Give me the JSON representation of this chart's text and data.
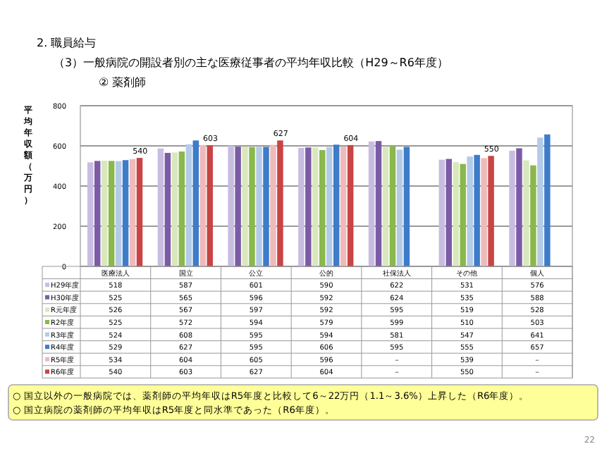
{
  "chart_data": {
    "type": "bar",
    "title": "2. 職員給与",
    "subtitle": "（3）一般病院の開設者別の主な医療従事者の平均年収比較（H29～R6年度）",
    "ylabel": "平均年収額（万円）",
    "categories": [
      "医療法人",
      "国立",
      "公立",
      "公的",
      "社保法人",
      "その他",
      "個人"
    ],
    "series": [
      {
        "name": "H29年度",
        "color": "#c8bde0",
        "values": [
          518,
          587,
          601,
          590,
          622,
          531,
          576
        ],
        "value_labels": [
          "518",
          "587",
          "601",
          "590",
          "622",
          "531",
          "576"
        ]
      },
      {
        "name": "H30年度",
        "color": "#7b5ba6",
        "values": [
          525,
          565,
          596,
          592,
          624,
          535,
          588
        ],
        "value_labels": [
          "525",
          "565",
          "596",
          "592",
          "624",
          "535",
          "588"
        ]
      },
      {
        "name": "R元年度",
        "color": "#d9e8bc",
        "values": [
          526,
          567,
          597,
          592,
          595,
          519,
          528
        ],
        "value_labels": [
          "526",
          "567",
          "597",
          "592",
          "595",
          "519",
          "528"
        ]
      },
      {
        "name": "R2年度",
        "color": "#8ab84c",
        "values": [
          525,
          572,
          594,
          579,
          599,
          510,
          503
        ],
        "value_labels": [
          "525",
          "572",
          "594",
          "579",
          "599",
          "510",
          "503"
        ]
      },
      {
        "name": "R3年度",
        "color": "#b4cbe8",
        "values": [
          524,
          608,
          595,
          594,
          581,
          547,
          641
        ],
        "value_labels": [
          "524",
          "608",
          "595",
          "594",
          "581",
          "547",
          "641"
        ]
      },
      {
        "name": "R4年度",
        "color": "#3d7cc9",
        "values": [
          529,
          627,
          595,
          606,
          595,
          555,
          657
        ],
        "value_labels": [
          "529",
          "627",
          "595",
          "606",
          "595",
          "555",
          "657"
        ]
      },
      {
        "name": "R5年度",
        "color": "#f0baba",
        "values": [
          534,
          604,
          605,
          596,
          null,
          539,
          null
        ],
        "value_labels": [
          "534",
          "604",
          "605",
          "596",
          "－",
          "539",
          "－"
        ]
      },
      {
        "name": "R6年度",
        "color": "#c94444",
        "values": [
          540,
          603,
          627,
          604,
          null,
          550,
          null
        ],
        "value_labels": [
          "540",
          "603",
          "627",
          "604",
          "－",
          "550",
          "－"
        ]
      }
    ],
    "ylim": [
      0,
      800
    ],
    "yticks": [
      0,
      200,
      400,
      600,
      800
    ],
    "grid": "y",
    "legend": "bottom",
    "annotations": [
      "② 薬剤師",
      {
        "text": "540",
        "x": "医療法人",
        "y": 540
      },
      {
        "text": "603",
        "x": "国立",
        "y": 603
      },
      {
        "text": "627",
        "x": "公立",
        "y": 627
      },
      {
        "text": "604",
        "x": "公的",
        "y": 604
      },
      {
        "text": "550",
        "x": "その他",
        "y": 550
      },
      "○ 国立以外の一般病院では、薬剤師の平均年収はR5年度と比較して6～22万円（1.1～3.6%）上昇した（R6年度）。",
      "○ 国立病院の薬剤師の平均年収はR5年度と同水準であった（R6年度）。",
      "22"
    ]
  }
}
